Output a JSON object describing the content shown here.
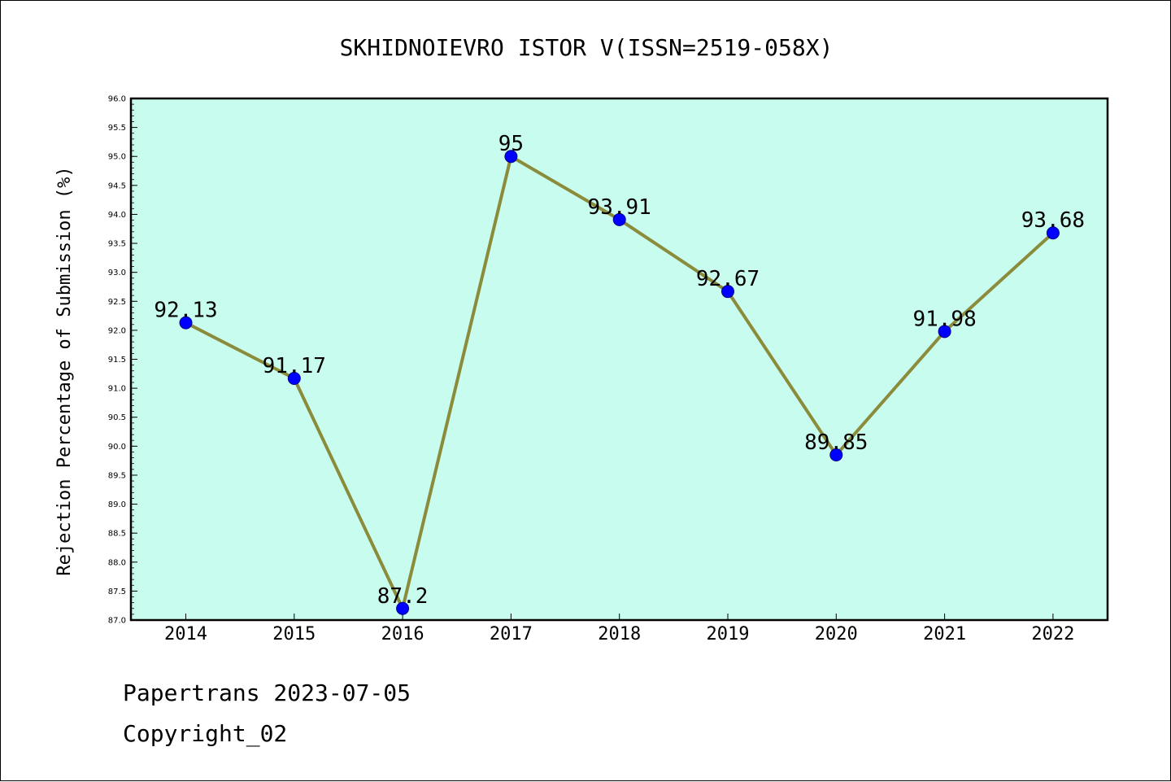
{
  "chart_data": {
    "type": "line",
    "title": "SKHIDNOIEVRO ISTOR V(ISSN=2519-058X)",
    "xlabel": "",
    "ylabel": "Rejection Percentage of Submission (%)",
    "categories": [
      "2014",
      "2015",
      "2016",
      "2017",
      "2018",
      "2019",
      "2020",
      "2021",
      "2022"
    ],
    "series": [
      {
        "values": [
          92.13,
          91.17,
          87.2,
          95,
          93.91,
          92.67,
          89.85,
          91.98,
          93.68
        ],
        "labels": [
          "92.13",
          "91.17",
          "87.2",
          "95",
          "93.91",
          "92.67",
          "89.85",
          "91.98",
          "93.68"
        ]
      }
    ],
    "ylim": [
      87.0,
      96.0
    ],
    "yticks": [
      "87.0",
      "87.5",
      "88.0",
      "88.5",
      "89.0",
      "89.5",
      "90.0",
      "90.5",
      "91.0",
      "91.5",
      "92.0",
      "92.5",
      "93.0",
      "93.5",
      "94.0",
      "94.5",
      "95.0",
      "95.5",
      "96.0"
    ],
    "grid": false,
    "colors": {
      "plot_background": "#c8fcee",
      "line": "#8b8b3c",
      "marker": "#0000ff"
    }
  },
  "footer": {
    "source": "Papertrans 2023-07-05",
    "copyright": "Copyright_02"
  }
}
